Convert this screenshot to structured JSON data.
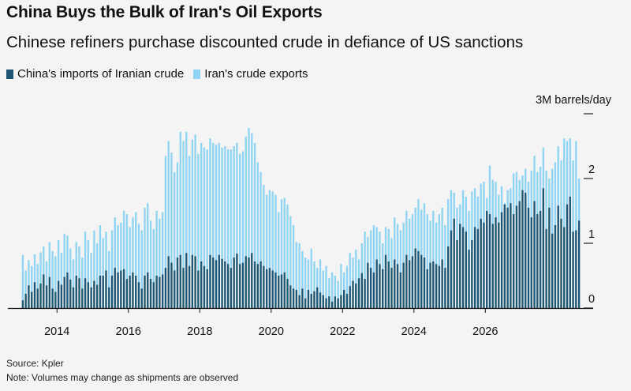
{
  "title": "China Buys the Bulk of Iran's Oil Exports",
  "subtitle": "Chinese refiners purchase discounted crude in defiance of US sanctions",
  "source": "Source: Kpler",
  "note": "Note: Volumes may change as shipments are observed",
  "colors": {
    "china": "#1f5673",
    "iran": "#8fd4f2",
    "background": "#f4f4f4"
  },
  "chart_data": {
    "type": "bar",
    "legend_position": "top-left",
    "series": [
      {
        "name": "China's imports of Iranian crude",
        "key": "china"
      },
      {
        "name": "Iran's crude exports",
        "key": "iran"
      }
    ],
    "y_unit_label": "3M barrels/day",
    "y_ticks": [
      "0",
      "1",
      "2",
      "3M barrels/day"
    ],
    "y_tick_values": [
      0,
      1,
      2,
      3
    ],
    "ylim": [
      0,
      3
    ],
    "x_ticks": [
      "2014",
      "2016",
      "2018",
      "2020",
      "2022",
      "2024",
      "2026"
    ],
    "x_tick_values": [
      2014,
      2016,
      2018,
      2020,
      2022,
      2024,
      2026
    ],
    "start_month": "2013-01",
    "iran_exports": [
      0.82,
      0.58,
      0.74,
      0.65,
      0.83,
      0.68,
      0.86,
      0.95,
      0.72,
      1.02,
      0.88,
      0.8,
      1.05,
      0.85,
      1.15,
      1.12,
      0.92,
      0.75,
      1.02,
      0.95,
      0.78,
      1.18,
      1.05,
      0.85,
      1.2,
      1.0,
      1.28,
      1.08,
      1.18,
      0.88,
      1.2,
      1.4,
      1.28,
      1.32,
      1.5,
      1.45,
      1.25,
      1.4,
      1.48,
      1.3,
      1.2,
      1.55,
      1.62,
      1.35,
      1.22,
      1.5,
      1.38,
      1.48,
      2.35,
      2.58,
      2.4,
      2.1,
      2.25,
      2.72,
      2.58,
      2.72,
      2.35,
      2.6,
      2.68,
      2.38,
      2.55,
      2.48,
      2.45,
      2.62,
      2.55,
      2.52,
      2.55,
      2.48,
      2.5,
      2.45,
      2.45,
      2.5,
      2.55,
      2.38,
      2.42,
      2.65,
      2.78,
      2.7,
      2.55,
      2.25,
      2.1,
      1.9,
      1.75,
      1.82,
      1.8,
      1.75,
      1.48,
      1.68,
      1.7,
      1.6,
      1.42,
      1.28,
      1.02,
      1.0,
      0.88,
      0.78,
      0.75,
      0.92,
      0.72,
      0.62,
      0.75,
      0.58,
      0.65,
      0.46,
      0.55,
      0.5,
      0.42,
      0.68,
      0.55,
      0.65,
      0.85,
      0.78,
      0.9,
      0.75,
      1.0,
      1.18,
      1.1,
      1.2,
      1.28,
      1.25,
      1.18,
      1.0,
      1.25,
      1.22,
      1.08,
      1.4,
      1.3,
      1.2,
      1.32,
      1.5,
      1.38,
      1.45,
      1.55,
      1.68,
      1.52,
      1.62,
      1.45,
      1.35,
      1.5,
      1.32,
      1.45,
      1.55,
      1.28,
      1.68,
      1.82,
      1.78,
      1.55,
      1.6,
      1.82,
      1.72,
      1.5,
      1.8,
      1.85,
      1.72,
      1.92,
      1.95,
      1.7,
      2.2,
      1.98,
      1.95,
      1.75,
      1.88,
      1.62,
      1.82,
      1.85,
      2.08,
      2.1,
      1.98,
      2.05,
      2.15,
      1.95,
      2.12,
      2.35,
      2.1,
      2.18,
      2.48,
      2.12,
      2.0,
      2.15,
      2.25,
      2.5,
      2.28,
      2.62,
      2.58,
      2.62,
      2.28,
      2.58,
      2.0
    ],
    "china_imports": [
      0.12,
      0.22,
      0.35,
      0.25,
      0.4,
      0.3,
      0.38,
      0.52,
      0.35,
      0.48,
      0.3,
      0.25,
      0.42,
      0.36,
      0.48,
      0.55,
      0.44,
      0.32,
      0.5,
      0.46,
      0.3,
      0.46,
      0.4,
      0.32,
      0.42,
      0.36,
      0.5,
      0.5,
      0.58,
      0.32,
      0.5,
      0.62,
      0.55,
      0.58,
      0.6,
      0.45,
      0.5,
      0.55,
      0.5,
      0.4,
      0.3,
      0.5,
      0.55,
      0.45,
      0.4,
      0.5,
      0.48,
      0.52,
      0.62,
      0.8,
      0.7,
      0.58,
      0.78,
      0.82,
      0.62,
      0.85,
      0.65,
      0.82,
      0.8,
      0.58,
      0.72,
      0.65,
      0.6,
      0.82,
      0.78,
      0.74,
      0.82,
      0.76,
      0.72,
      0.68,
      0.62,
      0.78,
      0.84,
      0.68,
      0.7,
      0.8,
      0.78,
      0.85,
      0.72,
      0.68,
      0.72,
      0.65,
      0.6,
      0.62,
      0.58,
      0.55,
      0.5,
      0.52,
      0.55,
      0.45,
      0.35,
      0.3,
      0.28,
      0.2,
      0.3,
      0.15,
      0.28,
      0.22,
      0.26,
      0.32,
      0.24,
      0.2,
      0.15,
      0.18,
      0.1,
      0.18,
      0.15,
      0.2,
      0.28,
      0.22,
      0.34,
      0.42,
      0.38,
      0.46,
      0.54,
      0.45,
      0.7,
      0.62,
      0.55,
      0.75,
      0.68,
      0.6,
      0.82,
      0.72,
      0.62,
      0.75,
      0.68,
      0.55,
      0.7,
      0.82,
      0.74,
      0.8,
      0.92,
      0.88,
      0.82,
      0.78,
      0.6,
      0.7,
      0.72,
      0.68,
      0.65,
      0.75,
      0.62,
      0.95,
      1.2,
      1.38,
      1.05,
      1.3,
      1.25,
      1.18,
      0.9,
      1.05,
      1.25,
      1.22,
      1.38,
      1.32,
      1.5,
      1.45,
      1.3,
      1.4,
      1.32,
      1.48,
      1.6,
      1.55,
      1.62,
      1.45,
      1.58,
      1.65,
      1.82,
      1.78,
      1.55,
      1.4,
      1.65,
      1.45,
      1.5,
      1.85,
      1.22,
      1.55,
      1.15,
      1.28,
      1.58,
      1.38,
      1.25,
      1.6,
      1.72,
      1.18,
      1.2,
      1.35,
      1.22,
      1.38
    ]
  }
}
